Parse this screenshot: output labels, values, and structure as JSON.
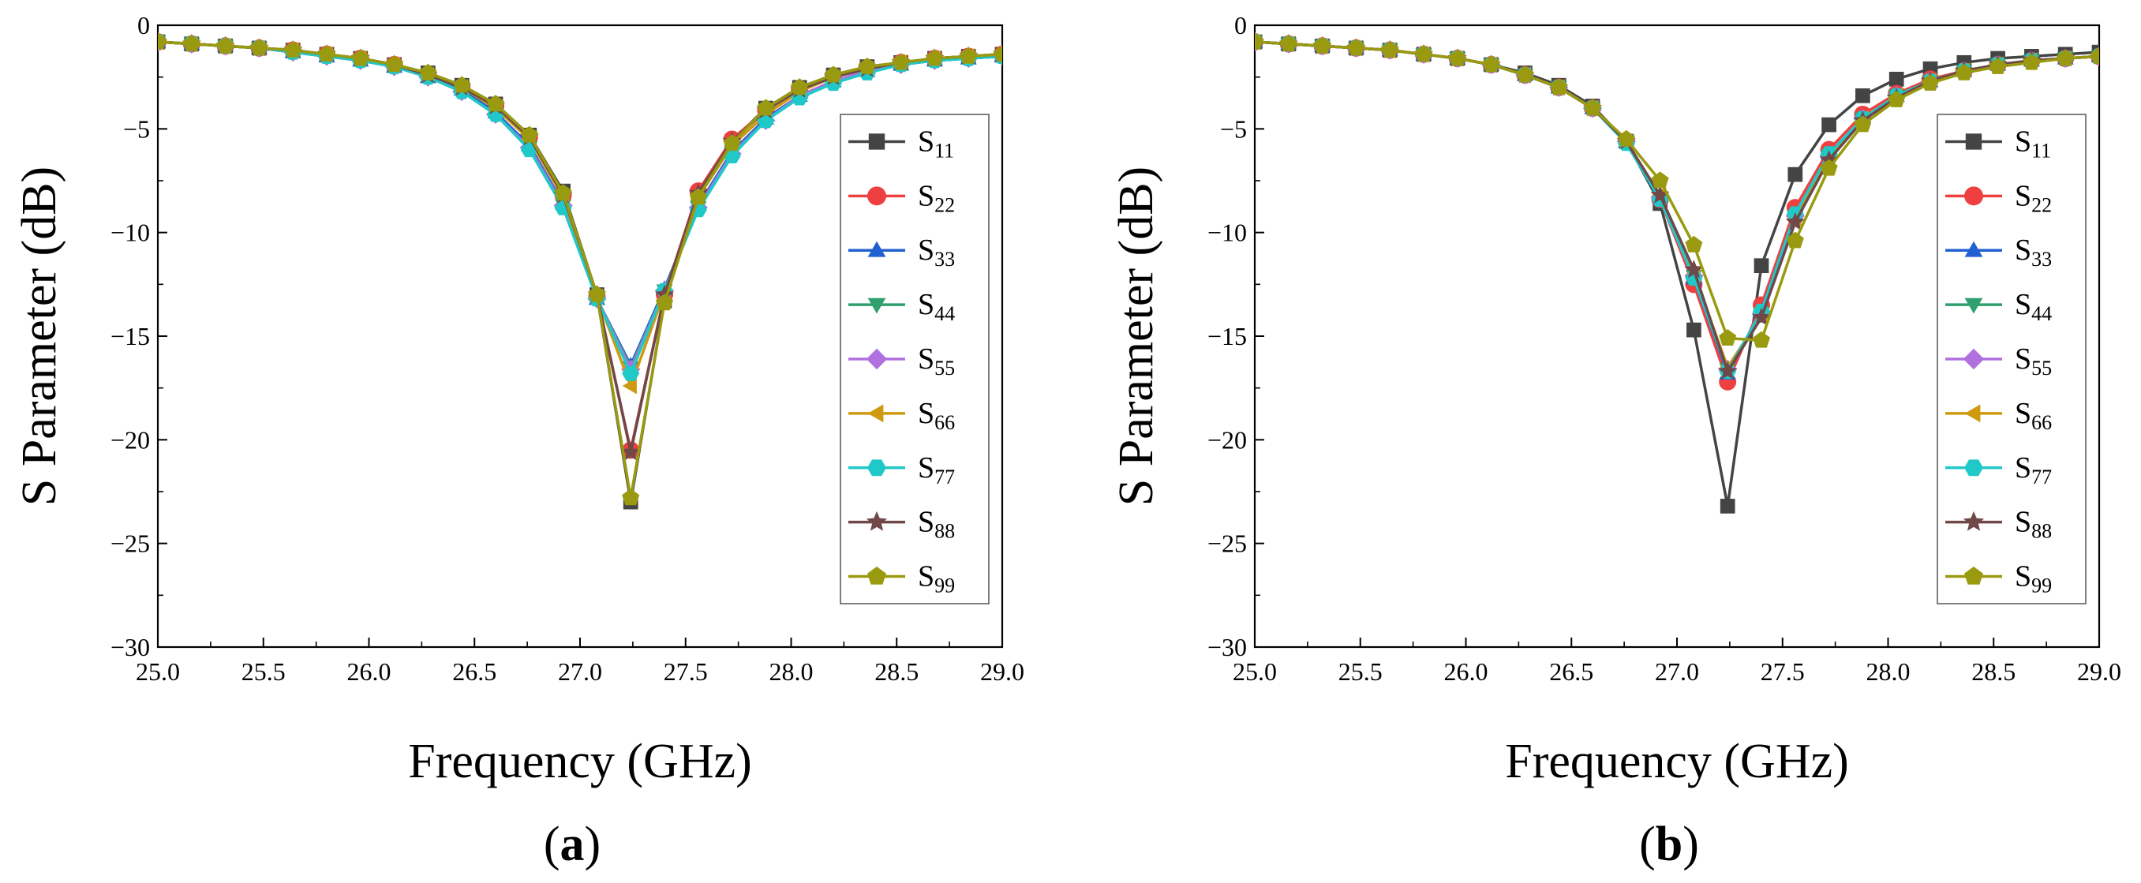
{
  "chart_data": [
    {
      "type": "line",
      "panel_label": "a",
      "xlabel": "Frequency (GHz)",
      "ylabel": "S Parameter (dB)",
      "xlim": [
        25.0,
        29.0
      ],
      "ylim": [
        -30,
        0
      ],
      "xticks": [
        "25.0",
        "25.5",
        "26.0",
        "26.5",
        "27.0",
        "27.5",
        "28.0",
        "28.5",
        "29.0"
      ],
      "yticks": [
        "0",
        "-5",
        "-10",
        "-15",
        "-20",
        "-25",
        "-30"
      ],
      "legend_position": "right",
      "x": [
        25.0,
        25.16,
        25.32,
        25.48,
        25.64,
        25.8,
        25.96,
        26.12,
        26.28,
        26.44,
        26.6,
        26.76,
        26.92,
        27.08,
        27.24,
        27.4,
        27.56,
        27.72,
        27.88,
        28.04,
        28.2,
        28.36,
        28.52,
        28.68,
        28.84,
        29.0
      ],
      "series": [
        {
          "name": "S11",
          "sub": "11",
          "color": "#444444",
          "marker": "square",
          "values": [
            -0.8,
            -0.9,
            -1.0,
            -1.1,
            -1.2,
            -1.4,
            -1.6,
            -1.9,
            -2.3,
            -2.9,
            -3.8,
            -5.3,
            -8.0,
            -13.0,
            -23.0,
            -13.3,
            -8.2,
            -5.6,
            -4.0,
            -3.0,
            -2.4,
            -2.0,
            -1.8,
            -1.6,
            -1.5,
            -1.4
          ]
        },
        {
          "name": "S22",
          "sub": "22",
          "color": "#ee4040",
          "marker": "circle",
          "values": [
            -0.8,
            -0.9,
            -1.0,
            -1.1,
            -1.2,
            -1.4,
            -1.6,
            -1.9,
            -2.4,
            -3.0,
            -3.9,
            -5.4,
            -8.2,
            -13.1,
            -20.5,
            -13.0,
            -8.0,
            -5.5,
            -4.1,
            -3.1,
            -2.5,
            -2.1,
            -1.8,
            -1.6,
            -1.5,
            -1.4
          ]
        },
        {
          "name": "S33",
          "sub": "33",
          "color": "#2060d0",
          "marker": "triangle-up",
          "values": [
            -0.8,
            -0.9,
            -1.0,
            -1.1,
            -1.3,
            -1.5,
            -1.7,
            -2.0,
            -2.5,
            -3.1,
            -4.2,
            -5.8,
            -8.6,
            -13.2,
            -16.4,
            -12.7,
            -8.7,
            -6.1,
            -4.5,
            -3.4,
            -2.7,
            -2.2,
            -1.9,
            -1.7,
            -1.6,
            -1.5
          ]
        },
        {
          "name": "S44",
          "sub": "44",
          "color": "#30a070",
          "marker": "triangle-down",
          "values": [
            -0.8,
            -0.9,
            -1.0,
            -1.1,
            -1.3,
            -1.5,
            -1.7,
            -2.0,
            -2.5,
            -3.2,
            -4.3,
            -5.9,
            -8.7,
            -13.2,
            -16.5,
            -12.8,
            -8.8,
            -6.2,
            -4.6,
            -3.4,
            -2.7,
            -2.2,
            -1.9,
            -1.7,
            -1.6,
            -1.5
          ]
        },
        {
          "name": "S55",
          "sub": "55",
          "color": "#b070e0",
          "marker": "diamond",
          "values": [
            -0.8,
            -0.9,
            -1.0,
            -1.1,
            -1.3,
            -1.5,
            -1.7,
            -2.0,
            -2.5,
            -3.2,
            -4.3,
            -5.9,
            -8.7,
            -13.2,
            -16.6,
            -12.8,
            -8.8,
            -6.2,
            -4.6,
            -3.4,
            -2.7,
            -2.2,
            -1.9,
            -1.7,
            -1.6,
            -1.5
          ]
        },
        {
          "name": "S66",
          "sub": "66",
          "color": "#d09a10",
          "marker": "triangle-left",
          "values": [
            -0.8,
            -0.9,
            -1.0,
            -1.1,
            -1.2,
            -1.4,
            -1.6,
            -1.9,
            -2.4,
            -3.0,
            -4.0,
            -5.5,
            -8.3,
            -13.1,
            -17.4,
            -12.9,
            -8.3,
            -5.8,
            -4.3,
            -3.2,
            -2.5,
            -2.1,
            -1.8,
            -1.6,
            -1.5,
            -1.4
          ]
        },
        {
          "name": "S77",
          "sub": "77",
          "color": "#20c8c8",
          "marker": "hexagon",
          "values": [
            -0.8,
            -0.9,
            -1.0,
            -1.1,
            -1.3,
            -1.5,
            -1.7,
            -2.0,
            -2.5,
            -3.2,
            -4.3,
            -6.0,
            -8.8,
            -13.2,
            -16.8,
            -12.8,
            -8.9,
            -6.3,
            -4.6,
            -3.5,
            -2.8,
            -2.3,
            -1.9,
            -1.7,
            -1.6,
            -1.5
          ]
        },
        {
          "name": "S88",
          "sub": "88",
          "color": "#704848",
          "marker": "star",
          "values": [
            -0.8,
            -0.9,
            -1.0,
            -1.1,
            -1.2,
            -1.4,
            -1.6,
            -1.9,
            -2.4,
            -3.0,
            -3.9,
            -5.4,
            -8.2,
            -13.0,
            -20.6,
            -13.0,
            -8.1,
            -5.6,
            -4.1,
            -3.1,
            -2.5,
            -2.1,
            -1.8,
            -1.6,
            -1.5,
            -1.4
          ]
        },
        {
          "name": "S99",
          "sub": "99",
          "color": "#9a9a10",
          "marker": "pentagon",
          "values": [
            -0.8,
            -0.9,
            -1.0,
            -1.1,
            -1.2,
            -1.4,
            -1.6,
            -1.9,
            -2.3,
            -2.9,
            -3.8,
            -5.3,
            -8.1,
            -13.0,
            -22.8,
            -13.4,
            -8.3,
            -5.7,
            -4.0,
            -3.0,
            -2.4,
            -2.0,
            -1.8,
            -1.6,
            -1.5,
            -1.4
          ]
        }
      ]
    },
    {
      "type": "line",
      "panel_label": "b",
      "xlabel": "Frequency (GHz)",
      "ylabel": "S Parameter (dB)",
      "xlim": [
        25.0,
        29.0
      ],
      "ylim": [
        -30,
        0
      ],
      "xticks": [
        "25.0",
        "25.5",
        "26.0",
        "26.5",
        "27.0",
        "27.5",
        "28.0",
        "28.5",
        "29.0"
      ],
      "yticks": [
        "0",
        "-5",
        "-10",
        "-15",
        "-20",
        "-25",
        "-30"
      ],
      "legend_position": "right",
      "x": [
        25.0,
        25.16,
        25.32,
        25.48,
        25.64,
        25.8,
        25.96,
        26.12,
        26.28,
        26.44,
        26.6,
        26.76,
        26.92,
        27.08,
        27.24,
        27.4,
        27.56,
        27.72,
        27.88,
        28.04,
        28.2,
        28.36,
        28.52,
        28.68,
        28.84,
        29.0
      ],
      "series": [
        {
          "name": "S11",
          "sub": "11",
          "color": "#444444",
          "marker": "square",
          "values": [
            -0.8,
            -0.9,
            -1.0,
            -1.1,
            -1.2,
            -1.4,
            -1.6,
            -1.9,
            -2.3,
            -2.9,
            -3.9,
            -5.6,
            -8.6,
            -14.7,
            -23.2,
            -11.6,
            -7.2,
            -4.8,
            -3.4,
            -2.6,
            -2.1,
            -1.8,
            -1.6,
            -1.5,
            -1.4,
            -1.3
          ]
        },
        {
          "name": "S22",
          "sub": "22",
          "color": "#ee4040",
          "marker": "circle",
          "values": [
            -0.8,
            -0.9,
            -1.0,
            -1.1,
            -1.2,
            -1.4,
            -1.6,
            -1.9,
            -2.4,
            -3.0,
            -4.0,
            -5.6,
            -8.4,
            -12.5,
            -17.2,
            -13.5,
            -8.8,
            -6.0,
            -4.3,
            -3.3,
            -2.6,
            -2.2,
            -1.9,
            -1.7,
            -1.6,
            -1.5
          ]
        },
        {
          "name": "S33",
          "sub": "33",
          "color": "#2060d0",
          "marker": "triangle-up",
          "values": [
            -0.8,
            -0.9,
            -1.0,
            -1.1,
            -1.2,
            -1.4,
            -1.6,
            -1.9,
            -2.4,
            -3.0,
            -4.0,
            -5.6,
            -8.3,
            -12.2,
            -16.8,
            -13.8,
            -9.1,
            -6.2,
            -4.5,
            -3.4,
            -2.7,
            -2.2,
            -1.9,
            -1.7,
            -1.6,
            -1.5
          ]
        },
        {
          "name": "S44",
          "sub": "44",
          "color": "#30a070",
          "marker": "triangle-down",
          "values": [
            -0.8,
            -0.9,
            -1.0,
            -1.1,
            -1.2,
            -1.4,
            -1.6,
            -1.9,
            -2.4,
            -3.0,
            -4.0,
            -5.6,
            -8.3,
            -12.1,
            -16.6,
            -13.9,
            -9.2,
            -6.3,
            -4.5,
            -3.4,
            -2.7,
            -2.2,
            -1.9,
            -1.7,
            -1.6,
            -1.5
          ]
        },
        {
          "name": "S55",
          "sub": "55",
          "color": "#b070e0",
          "marker": "diamond",
          "values": [
            -0.8,
            -0.9,
            -1.0,
            -1.1,
            -1.2,
            -1.4,
            -1.6,
            -1.9,
            -2.4,
            -3.0,
            -4.0,
            -5.6,
            -8.3,
            -12.1,
            -16.6,
            -13.9,
            -9.2,
            -6.3,
            -4.5,
            -3.4,
            -2.7,
            -2.2,
            -1.9,
            -1.7,
            -1.6,
            -1.5
          ]
        },
        {
          "name": "S66",
          "sub": "66",
          "color": "#d09a10",
          "marker": "triangle-left",
          "values": [
            -0.8,
            -0.9,
            -1.0,
            -1.1,
            -1.2,
            -1.4,
            -1.6,
            -1.9,
            -2.4,
            -3.0,
            -4.0,
            -5.6,
            -8.2,
            -12.0,
            -16.5,
            -14.0,
            -9.3,
            -6.3,
            -4.5,
            -3.4,
            -2.7,
            -2.2,
            -1.9,
            -1.7,
            -1.6,
            -1.5
          ]
        },
        {
          "name": "S77",
          "sub": "77",
          "color": "#20c8c8",
          "marker": "hexagon",
          "values": [
            -0.8,
            -0.9,
            -1.0,
            -1.1,
            -1.2,
            -1.4,
            -1.6,
            -1.9,
            -2.4,
            -3.0,
            -4.0,
            -5.7,
            -8.4,
            -12.2,
            -16.7,
            -13.8,
            -9.1,
            -6.2,
            -4.5,
            -3.4,
            -2.7,
            -2.2,
            -1.9,
            -1.7,
            -1.6,
            -1.5
          ]
        },
        {
          "name": "S88",
          "sub": "88",
          "color": "#704848",
          "marker": "star",
          "values": [
            -0.8,
            -0.9,
            -1.0,
            -1.1,
            -1.2,
            -1.4,
            -1.6,
            -1.9,
            -2.4,
            -3.0,
            -4.0,
            -5.6,
            -8.2,
            -11.8,
            -16.7,
            -14.1,
            -9.5,
            -6.5,
            -4.6,
            -3.5,
            -2.7,
            -2.2,
            -1.9,
            -1.7,
            -1.6,
            -1.5
          ]
        },
        {
          "name": "S99",
          "sub": "99",
          "color": "#9a9a10",
          "marker": "pentagon",
          "values": [
            -0.8,
            -0.9,
            -1.0,
            -1.1,
            -1.2,
            -1.4,
            -1.6,
            -1.9,
            -2.4,
            -3.0,
            -4.0,
            -5.5,
            -7.5,
            -10.6,
            -15.1,
            -15.2,
            -10.4,
            -6.9,
            -4.8,
            -3.6,
            -2.8,
            -2.3,
            -2.0,
            -1.8,
            -1.6,
            -1.5
          ]
        }
      ]
    }
  ]
}
